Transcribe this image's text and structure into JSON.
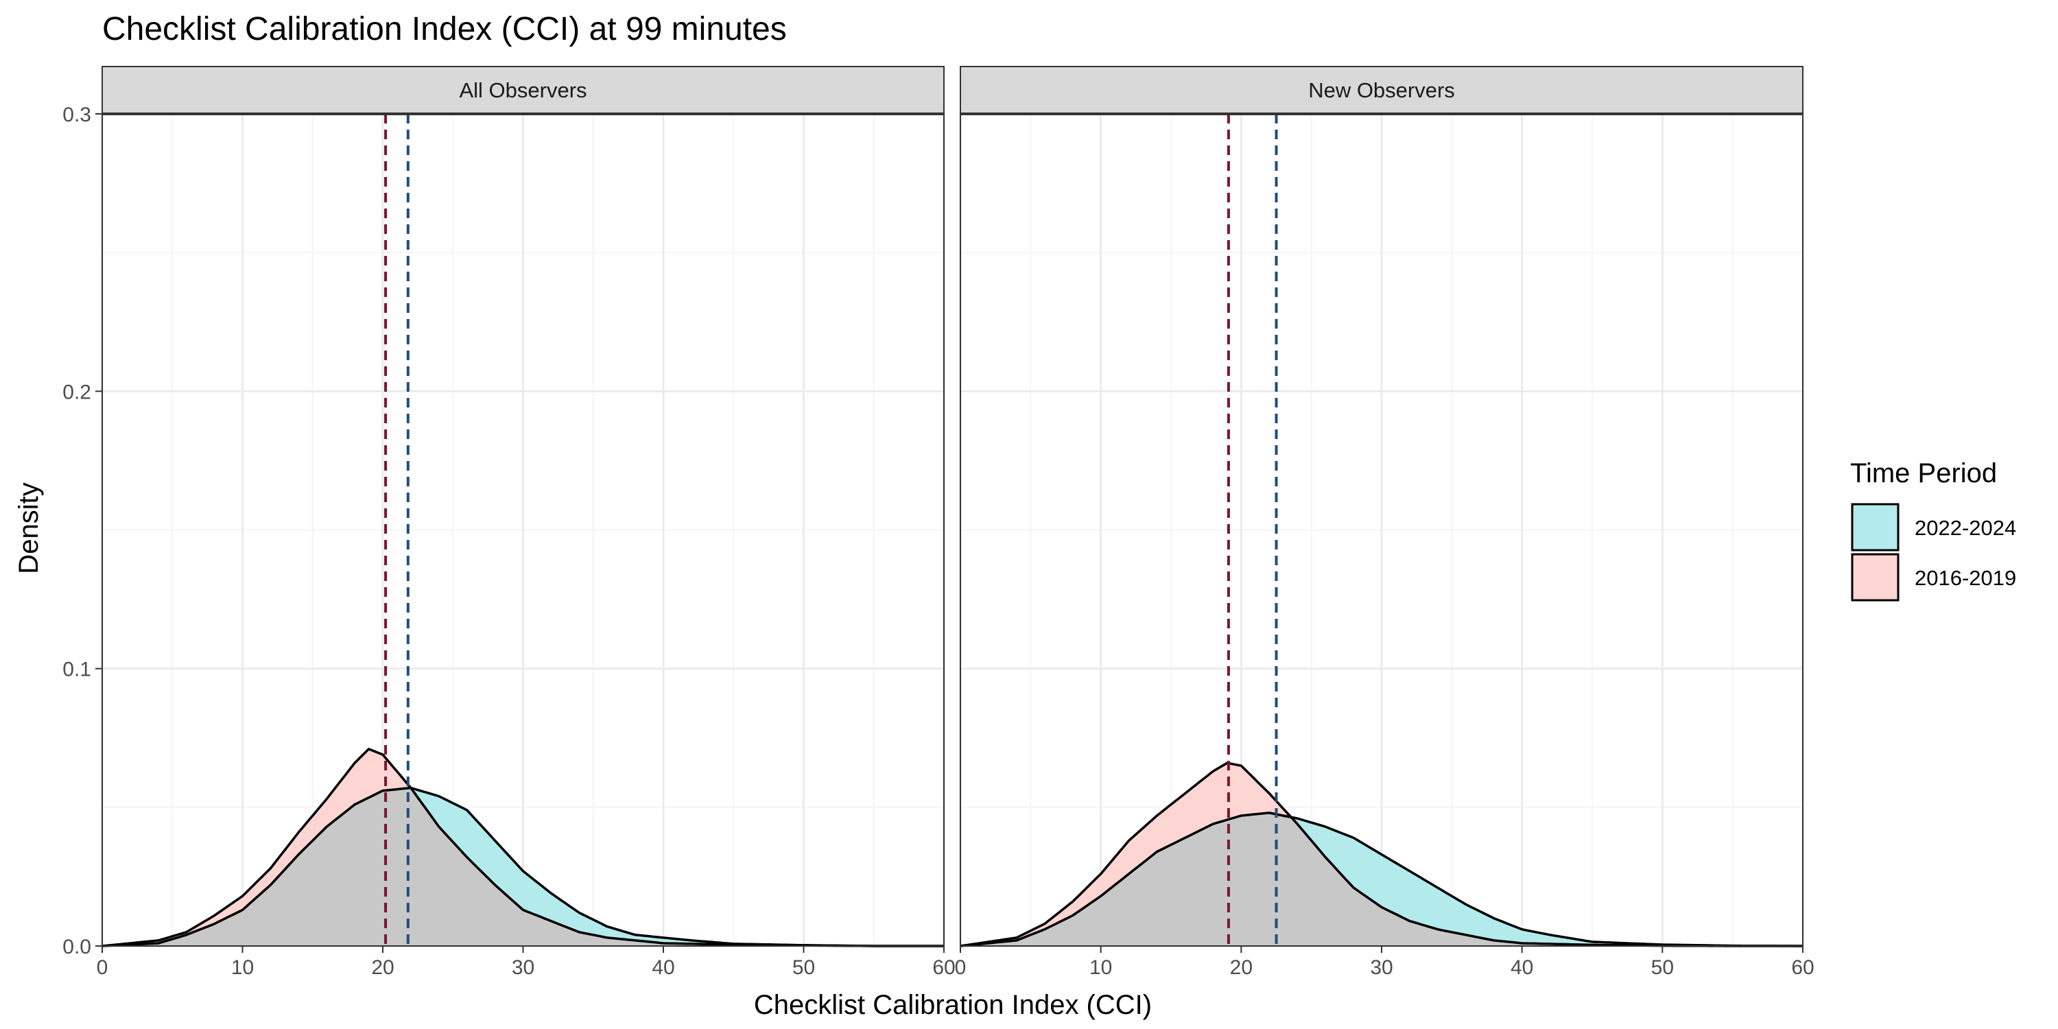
{
  "chart_data": {
    "type": "area",
    "subtype": "density",
    "title": "Checklist Calibration Index (CCI) at 99 minutes",
    "xlabel": "Checklist Calibration Index (CCI)",
    "ylabel": "Density",
    "xlim": [
      0,
      60
    ],
    "ylim": [
      0,
      0.3
    ],
    "x_ticks": [
      0,
      10,
      20,
      30,
      40,
      50,
      60
    ],
    "y_ticks": [
      0.0,
      0.1,
      0.2,
      0.3
    ],
    "y_tick_labels": [
      "0.0",
      "0.1",
      "0.2",
      "0.3"
    ],
    "grid": true,
    "legend": {
      "title": "Time Period",
      "position": "right",
      "entries": [
        {
          "label": "2022-2024",
          "color": "#b3eaeb"
        },
        {
          "label": "2016-2019",
          "color": "#fdd5d2"
        }
      ]
    },
    "colors": {
      "fill_2022": "#b3eaeb",
      "fill_2016": "#fdd5d2",
      "overlap": "#c8c8c8",
      "mean_2016": "#7a1530",
      "mean_2022": "#1f4e79",
      "strip_bg": "#d9d9d9",
      "grid_major": "#ebebeb",
      "grid_minor": "#f5f5f5"
    },
    "panels": [
      {
        "strip": "All Observers",
        "means": {
          "2016-2019": 20.2,
          "2022-2024": 21.8
        },
        "series": [
          {
            "name": "2016-2019",
            "x": [
              0,
              4,
              6,
              8,
              10,
              12,
              14,
              16,
              18,
              19,
              20,
              21,
              22,
              23,
              24,
              26,
              28,
              30,
              32,
              34,
              36,
              38,
              40,
              45,
              50,
              55,
              60
            ],
            "y": [
              0.0,
              0.002,
              0.005,
              0.011,
              0.018,
              0.028,
              0.041,
              0.053,
              0.066,
              0.071,
              0.069,
              0.063,
              0.057,
              0.05,
              0.043,
              0.032,
              0.022,
              0.013,
              0.009,
              0.005,
              0.003,
              0.002,
              0.001,
              0.0005,
              0.0002,
              0.0,
              0.0
            ]
          },
          {
            "name": "2022-2024",
            "x": [
              0,
              4,
              6,
              8,
              10,
              12,
              14,
              16,
              18,
              20,
              22,
              24,
              26,
              28,
              30,
              32,
              34,
              36,
              38,
              40,
              42,
              45,
              50,
              55,
              60
            ],
            "y": [
              0.0,
              0.001,
              0.004,
              0.008,
              0.013,
              0.022,
              0.033,
              0.043,
              0.051,
              0.056,
              0.057,
              0.054,
              0.049,
              0.038,
              0.027,
              0.019,
              0.012,
              0.007,
              0.004,
              0.003,
              0.002,
              0.0008,
              0.0003,
              0.0,
              0.0
            ]
          }
        ]
      },
      {
        "strip": "New Observers",
        "means": {
          "2016-2019": 19.1,
          "2022-2024": 22.5
        },
        "series": [
          {
            "name": "2016-2019",
            "x": [
              0,
              4,
              6,
              8,
              10,
              12,
              14,
              16,
              18,
              19,
              20,
              21,
              22,
              24,
              26,
              28,
              30,
              32,
              34,
              36,
              38,
              40,
              45,
              50,
              55,
              60
            ],
            "y": [
              0.0,
              0.003,
              0.008,
              0.016,
              0.026,
              0.038,
              0.047,
              0.055,
              0.063,
              0.066,
              0.065,
              0.06,
              0.055,
              0.044,
              0.032,
              0.021,
              0.014,
              0.009,
              0.006,
              0.004,
              0.002,
              0.001,
              0.0004,
              0.0001,
              0.0,
              0.0
            ]
          },
          {
            "name": "2022-2024",
            "x": [
              0,
              4,
              6,
              8,
              10,
              12,
              14,
              16,
              18,
              20,
              22,
              24,
              26,
              28,
              30,
              32,
              34,
              36,
              38,
              40,
              42,
              45,
              50,
              55,
              60
            ],
            "y": [
              0.0,
              0.002,
              0.006,
              0.011,
              0.018,
              0.026,
              0.034,
              0.039,
              0.044,
              0.047,
              0.048,
              0.046,
              0.043,
              0.039,
              0.033,
              0.027,
              0.021,
              0.015,
              0.01,
              0.006,
              0.004,
              0.0015,
              0.0005,
              0.0001,
              0.0
            ]
          }
        ]
      }
    ]
  }
}
